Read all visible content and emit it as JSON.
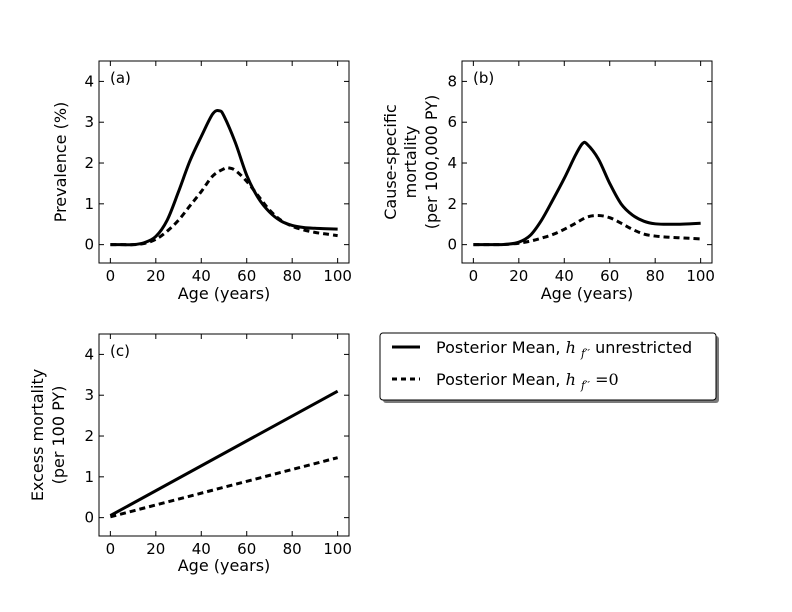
{
  "chart_data": [
    {
      "type": "line",
      "panel_label": "(a)",
      "xlabel": "Age (years)",
      "ylabel_lines": [
        "Prevalence (%)"
      ],
      "xlim": [
        -5,
        105
      ],
      "ylim": [
        -0.45,
        4.5
      ],
      "xticks": [
        0,
        20,
        40,
        60,
        80,
        100
      ],
      "yticks": [
        0,
        1,
        2,
        3,
        4
      ],
      "series": [
        {
          "style": "solid",
          "x": [
            0,
            5,
            10,
            15,
            20,
            25,
            30,
            35,
            40,
            45,
            48,
            50,
            55,
            60,
            65,
            70,
            75,
            80,
            85,
            90,
            95,
            100
          ],
          "values": [
            0,
            0,
            0,
            0.05,
            0.2,
            0.6,
            1.3,
            2.05,
            2.65,
            3.2,
            3.28,
            3.15,
            2.5,
            1.7,
            1.15,
            0.8,
            0.58,
            0.47,
            0.42,
            0.4,
            0.39,
            0.38
          ]
        },
        {
          "style": "dashed",
          "x": [
            0,
            5,
            10,
            15,
            20,
            25,
            30,
            35,
            40,
            45,
            50,
            52,
            55,
            60,
            65,
            70,
            75,
            80,
            85,
            90,
            95,
            100
          ],
          "values": [
            0,
            0,
            0,
            0.03,
            0.13,
            0.33,
            0.6,
            0.95,
            1.3,
            1.68,
            1.86,
            1.88,
            1.82,
            1.55,
            1.2,
            0.85,
            0.6,
            0.45,
            0.36,
            0.3,
            0.26,
            0.22
          ]
        }
      ]
    },
    {
      "type": "line",
      "panel_label": "(b)",
      "xlabel": "Age (years)",
      "ylabel_lines": [
        "Cause-specific",
        "mortality",
        "(per 100,000 PY)"
      ],
      "xlim": [
        -5,
        105
      ],
      "ylim": [
        -0.9,
        9
      ],
      "xticks": [
        0,
        20,
        40,
        60,
        80,
        100
      ],
      "yticks": [
        0,
        2,
        4,
        6,
        8
      ],
      "series": [
        {
          "style": "solid",
          "x": [
            0,
            5,
            10,
            15,
            20,
            25,
            30,
            35,
            40,
            45,
            48,
            50,
            55,
            60,
            65,
            70,
            75,
            80,
            85,
            90,
            95,
            100
          ],
          "values": [
            0,
            0,
            0,
            0.02,
            0.12,
            0.45,
            1.2,
            2.2,
            3.25,
            4.4,
            4.95,
            4.93,
            4.2,
            3.0,
            2.0,
            1.45,
            1.15,
            1.02,
            1.0,
            1.0,
            1.02,
            1.05
          ]
        },
        {
          "style": "dashed",
          "x": [
            0,
            5,
            10,
            15,
            20,
            25,
            30,
            35,
            40,
            45,
            50,
            55,
            60,
            65,
            70,
            75,
            80,
            85,
            90,
            95,
            100
          ],
          "values": [
            0,
            0,
            0,
            0.02,
            0.07,
            0.17,
            0.32,
            0.5,
            0.75,
            1.05,
            1.35,
            1.43,
            1.32,
            1.05,
            0.75,
            0.52,
            0.42,
            0.37,
            0.34,
            0.31,
            0.28
          ]
        }
      ]
    },
    {
      "type": "line",
      "panel_label": "(c)",
      "xlabel": "Age (years)",
      "ylabel_lines": [
        "Excess mortality",
        "(per 100 PY)"
      ],
      "xlim": [
        -5,
        105
      ],
      "ylim": [
        -0.45,
        4.5
      ],
      "xticks": [
        0,
        20,
        40,
        60,
        80,
        100
      ],
      "yticks": [
        0,
        1,
        2,
        3,
        4
      ],
      "series": [
        {
          "style": "solid",
          "x": [
            0,
            100
          ],
          "values": [
            0.05,
            3.1
          ]
        },
        {
          "style": "dashed",
          "x": [
            0,
            100
          ],
          "values": [
            0.02,
            1.47
          ]
        }
      ]
    }
  ],
  "legend": {
    "items": [
      {
        "style": "solid",
        "text": "Posterior Mean, ",
        "math": "h",
        "math_sub": "f′′",
        "suffix": " unrestricted"
      },
      {
        "style": "dashed",
        "text": "Posterior Mean, ",
        "math": "h",
        "math_sub": "f′′",
        "suffix": " =0"
      }
    ]
  }
}
